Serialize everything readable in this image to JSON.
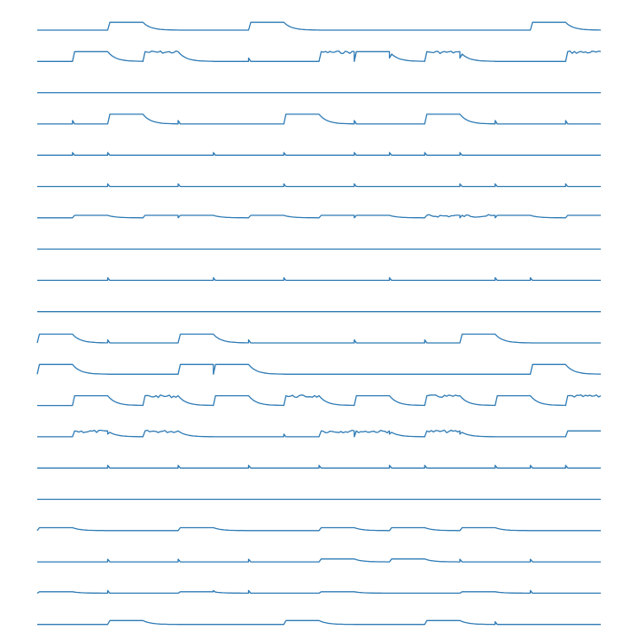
{
  "chart_data": {
    "type": "line",
    "title": "",
    "xlabel": "",
    "ylabel": "",
    "grid": false,
    "axes_visible": false,
    "line_color": "#2f7bb5",
    "background": "#ffffff",
    "n_periods": 16,
    "x_range": [
      0,
      16
    ],
    "rows": [
      {
        "high": [
          2,
          6,
          14
        ],
        "amp": 0.8,
        "noise": [],
        "spikes": []
      },
      {
        "high": [
          1,
          3,
          8,
          9,
          11,
          15
        ],
        "amp": 1.0,
        "noise": [
          2,
          3,
          8,
          11,
          15
        ],
        "spikes": [
          6,
          9,
          10,
          12
        ]
      },
      {
        "high": [],
        "amp": 1.0,
        "noise": [],
        "spikes": []
      },
      {
        "high": [
          2,
          7,
          11
        ],
        "amp": 1.0,
        "noise": [],
        "spikes": [
          1,
          4,
          9,
          13,
          15
        ]
      },
      {
        "high": [],
        "amp": 0.2,
        "noise": [],
        "spikes": [
          1,
          2,
          5,
          7,
          9,
          10,
          11,
          12
        ]
      },
      {
        "high": [],
        "amp": 0.2,
        "noise": [],
        "spikes": [
          2,
          4,
          7,
          9,
          12,
          13,
          15
        ]
      },
      {
        "high": [
          1,
          3,
          4,
          6,
          8,
          9,
          11,
          12,
          13,
          15
        ],
        "amp": 0.25,
        "noise": [
          11,
          12
        ],
        "spikes": [
          1,
          4,
          12
        ]
      },
      {
        "high": [],
        "amp": 0.1,
        "noise": [],
        "spikes": []
      },
      {
        "high": [],
        "amp": 0.15,
        "noise": [],
        "spikes": [
          2,
          5,
          7,
          10,
          13,
          14
        ]
      },
      {
        "high": [],
        "amp": 0.1,
        "noise": [],
        "spikes": []
      },
      {
        "high": [
          0,
          4,
          12
        ],
        "amp": 0.9,
        "noise": [],
        "spikes": [
          2,
          6,
          9,
          11
        ]
      },
      {
        "high": [
          0,
          4,
          5,
          14
        ],
        "amp": 1.0,
        "noise": [],
        "spikes": [
          5,
          14
        ]
      },
      {
        "high": [
          1,
          3,
          5,
          7,
          9,
          11,
          13,
          15
        ],
        "amp": 1.0,
        "noise": [
          3,
          7,
          11,
          15
        ],
        "spikes": []
      },
      {
        "high": [
          1,
          3,
          8,
          9,
          11,
          15
        ],
        "amp": 0.6,
        "noise": [
          1,
          3,
          8,
          9,
          11
        ],
        "spikes": [
          2,
          7,
          10,
          12
        ]
      },
      {
        "high": [],
        "amp": 0.2,
        "noise": [],
        "spikes": [
          2,
          4,
          6,
          8,
          10,
          11,
          13,
          14,
          15
        ]
      },
      {
        "high": [],
        "amp": 0.1,
        "noise": [],
        "spikes": []
      },
      {
        "high": [
          0,
          4,
          8,
          10,
          12
        ],
        "amp": 0.3,
        "noise": [],
        "spikes": []
      },
      {
        "high": [
          8,
          10
        ],
        "amp": 0.3,
        "noise": [],
        "spikes": [
          2,
          4,
          6,
          12,
          14
        ]
      },
      {
        "high": [
          0,
          4,
          8,
          12
        ],
        "amp": 0.15,
        "noise": [],
        "spikes": [
          2,
          5,
          6,
          14
        ]
      },
      {
        "high": [
          2,
          7,
          11
        ],
        "amp": 0.4,
        "noise": [],
        "spikes": [
          7,
          13
        ]
      }
    ]
  }
}
